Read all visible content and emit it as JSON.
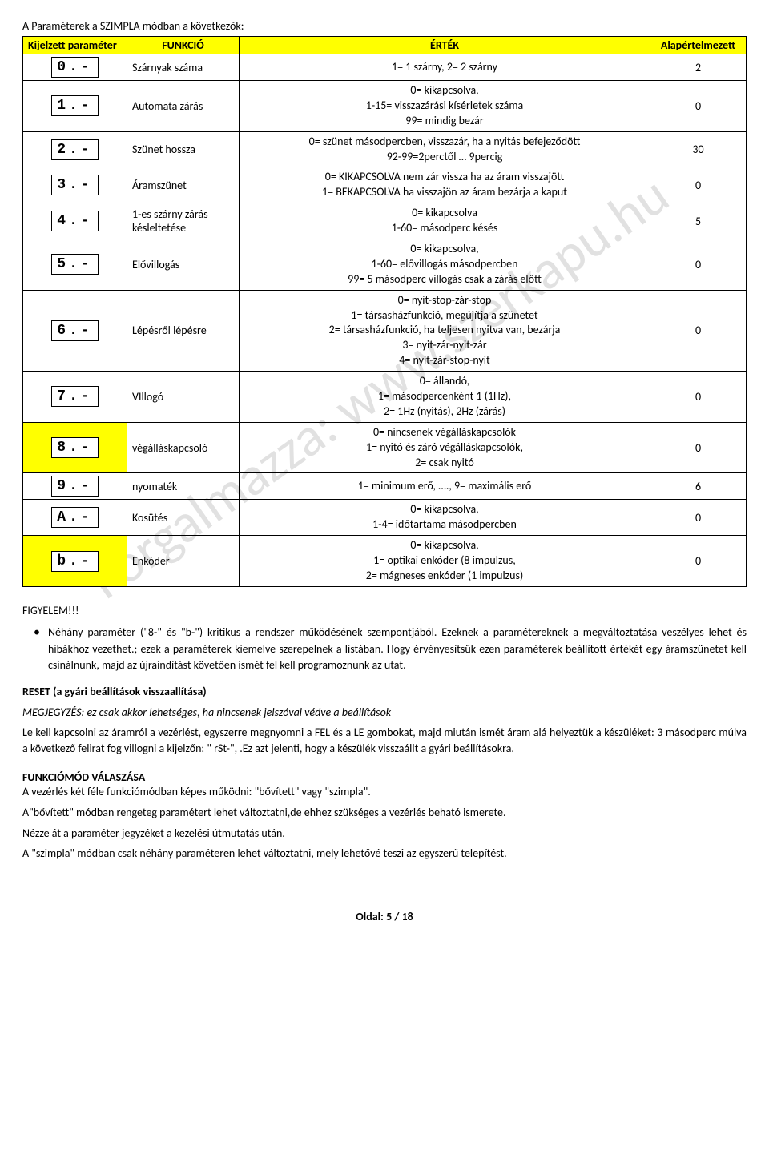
{
  "watermark": "Forgalmazza: www.szerkapu.hu",
  "intro": "A Paraméterek a SZIMPLA módban a következők:",
  "headers": {
    "col1": "Kijelzett paraméter",
    "col2": "FUNKCIÓ",
    "col3": "ÉRTÉK",
    "col4": "Alapértelmezett"
  },
  "rows": [
    {
      "disp": "0.-",
      "func": "Szárnyak száma",
      "ertek": "1= 1 szárny, 2= 2 szárny",
      "def": "2",
      "hl": false
    },
    {
      "disp": "1.-",
      "func": "Automata zárás",
      "ertek": "0= kikapcsolva,\n1-15= visszazárási kísérletek száma\n99= mindig bezár",
      "def": "0",
      "hl": false
    },
    {
      "disp": "2.-",
      "func": "Szünet hossza",
      "ertek": "0= szünet másodpercben, visszazár, ha a nyitás befejeződött\n92-99=2perctől … 9percig",
      "def": "30",
      "hl": false
    },
    {
      "disp": "3.-",
      "func": "Áramszünet",
      "ertek": "0= KIKAPCSOLVA nem zár vissza ha az áram visszajött\n1= BEKAPCSOLVA ha visszajön az áram bezárja a kaput",
      "def": "0",
      "hl": false
    },
    {
      "disp": "4.-",
      "func": "1-es szárny zárás késleltetése",
      "ertek": "0= kikapcsolva\n1-60= másodperc késés",
      "def": "5",
      "hl": false
    },
    {
      "disp": "5.-",
      "func": "Elővillogás",
      "ertek": "0= kikapcsolva,\n1-60= elővillogás másodpercben\n99= 5 másodperc villogás csak a zárás előtt",
      "def": "0",
      "hl": false
    },
    {
      "disp": "6.-",
      "func": "Lépésről lépésre",
      "ertek": "0= nyit-stop-zár-stop\n1= társasházfunkció, megújítja a szünetet\n2= társasházfunkció, ha teljesen nyitva van, bezárja\n3= nyit-zár-nyit-zár\n4= nyit-zár-stop-nyit",
      "def": "0",
      "hl": false
    },
    {
      "disp": "7.-",
      "func": "VIllogó",
      "ertek": "0= állandó,\n1= másodpercenként 1 (1Hz),\n2= 1Hz (nyitás), 2Hz (zárás)",
      "def": "0",
      "hl": false
    },
    {
      "disp": "8.-",
      "func": "végálláskapcsoló",
      "ertek": "0= nincsenek végálláskapcsolók\n1= nyitó és záró végálláskapcsolók,\n2= csak nyitó",
      "def": "0",
      "hl": true
    },
    {
      "disp": "9.-",
      "func": "nyomaték",
      "ertek": "1= minimum erő, …., 9= maximális erő",
      "def": "6",
      "hl": false
    },
    {
      "disp": "A.-",
      "func": "Kosütés",
      "ertek": "0= kikapcsolva,\n1-4= időtartama másodpercben",
      "def": "0",
      "hl": false
    },
    {
      "disp": "b.-",
      "func": "Enkóder",
      "ertek": "0= kikapcsolva,\n1= optikai enkóder  (8 impulzus,\n2= mágneses enkóder (1 impulzus)",
      "def": "0",
      "hl": true
    }
  ],
  "figyelem": {
    "title": "FIGYELEM!!!",
    "body": "Néhány paraméter (\"8-\" és \"b-\")  kritikus a rendszer működésének szempontjából. Ezeknek a paramétereknek a megváltoztatása veszélyes lehet és hibákhoz vezethet.; ezek a paraméterek kiemelve szerepelnek a listában. Hogy érvényesítsük ezen paraméterek beállított értékét egy áramszünetet kell csinálnunk, majd az újraindítást követően ismét fel kell programoznunk az utat."
  },
  "reset": {
    "title": "RESET (a gyári beállítások visszaallítása)",
    "note": "MEGJEGYZÉS: ez csak akkor lehetséges, ha nincsenek jelszóval védve a beállítások",
    "body": "Le kell kapcsolni az áramról a vezérlést, egyszerre megnyomni a FEL és a LE gombokat, majd miután ismét áram alá helyeztük a készüléket: 3 másodperc múlva a következő felirat fog villogni a kijelzőn: \" rSt-\", .Ez azt jelenti, hogy a készülék visszaállt a gyári beállításokra."
  },
  "funkciomod": {
    "title": "FUNKCIÓMÓD VÁLASZÁSA",
    "l1": "A vezérlés két féle funkciómódban képes működni: \"bővített\" vagy \"szimpla\".",
    "l2": "A\"bővített\" módban rengeteg paramétert lehet változtatni,de ehhez szükséges a vezérlés beható ismerete.",
    "l3": "Nézze át a paraméter jegyzéket a kezelési útmutatás után.",
    "l4": "A \"szimpla\" módban csak néhány paraméteren lehet változtatni, mely lehetővé teszi az egyszerű telepítést."
  },
  "footer": "Oldal:  5 / 18"
}
